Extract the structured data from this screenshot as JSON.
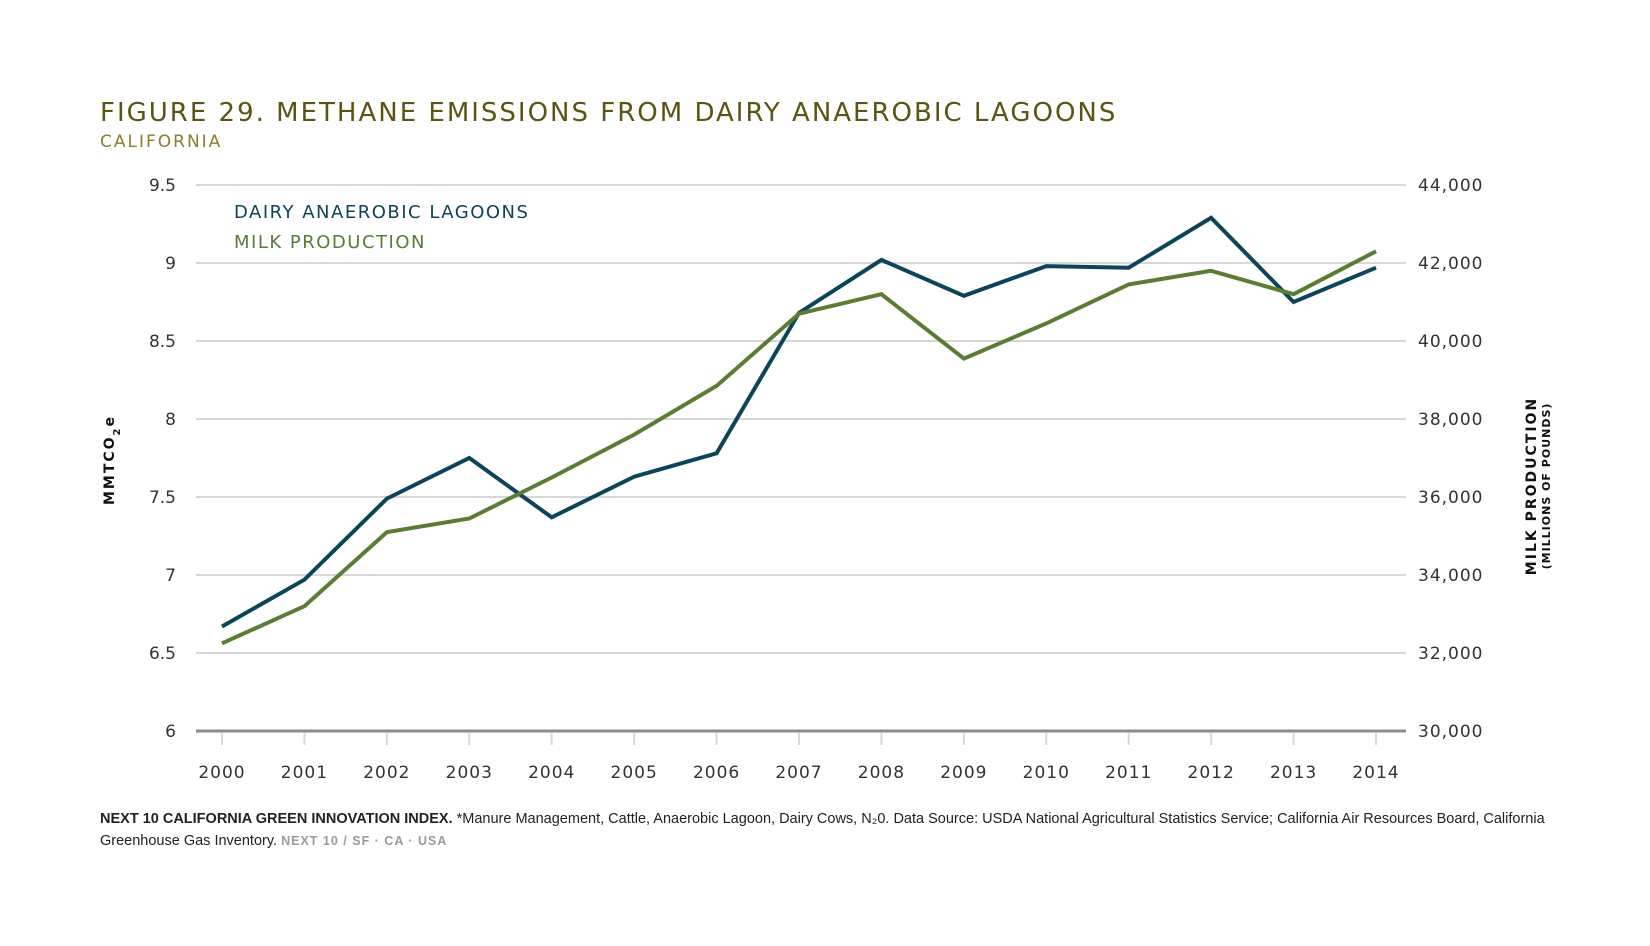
{
  "title": "FIGURE 29. METHANE EMISSIONS FROM DAIRY ANAEROBIC LAGOONS",
  "subtitle": "CALIFORNIA",
  "colors": {
    "lagoons": "#0d4459",
    "milk": "#5a7c35",
    "grid": "#d8d8d8",
    "axis": "#8c8c8c"
  },
  "chart_data": {
    "type": "line",
    "title": "FIGURE 29. METHANE EMISSIONS FROM DAIRY ANAEROBIC LAGOONS",
    "subtitle": "CALIFORNIA",
    "x": [
      "2000",
      "2001",
      "2002",
      "2003",
      "2004",
      "2005",
      "2006",
      "2007",
      "2008",
      "2009",
      "2010",
      "2011",
      "2012",
      "2013",
      "2014"
    ],
    "y_left": {
      "label": "MMTCO2e",
      "range": [
        6,
        9.5
      ],
      "ticks": [
        "6",
        "6.5",
        "7",
        "7.5",
        "8",
        "8.5",
        "9",
        "9.5"
      ]
    },
    "y_right": {
      "label": "MILK PRODUCTION",
      "sublabel": "(MILLIONS OF POUNDS)",
      "range": [
        30000,
        44000
      ],
      "ticks": [
        "30,000",
        "32,000",
        "34,000",
        "36,000",
        "38,000",
        "40,000",
        "42,000",
        "44,000"
      ]
    },
    "grid": true,
    "legend_position": "top-left",
    "series": [
      {
        "name": "DAIRY ANAEROBIC LAGOONS",
        "axis": "left",
        "color": "#0d4459",
        "values": [
          6.67,
          6.97,
          7.49,
          7.75,
          7.37,
          7.63,
          7.78,
          8.68,
          9.02,
          8.79,
          8.98,
          8.97,
          9.29,
          8.75,
          8.97
        ]
      },
      {
        "name": "MILK PRODUCTION",
        "axis": "right",
        "color": "#5a7c35",
        "values": [
          32250,
          33200,
          35100,
          35450,
          36500,
          37600,
          38850,
          40700,
          41200,
          39550,
          40450,
          41450,
          41800,
          41200,
          42300
        ]
      }
    ]
  },
  "footer": {
    "source_label": "NEXT 10 CALIFORNIA GREEN INNOVATION INDEX.",
    "note": " *Manure Management, Cattle, Anaerobic Lagoon, Dairy Cows, N₂0. Data Source: USDA National Agricultural Statistics Service; California Air Resources Board, California Greenhouse Gas Inventory.",
    "credit": "NEXT 10  /  SF · CA · USA"
  }
}
